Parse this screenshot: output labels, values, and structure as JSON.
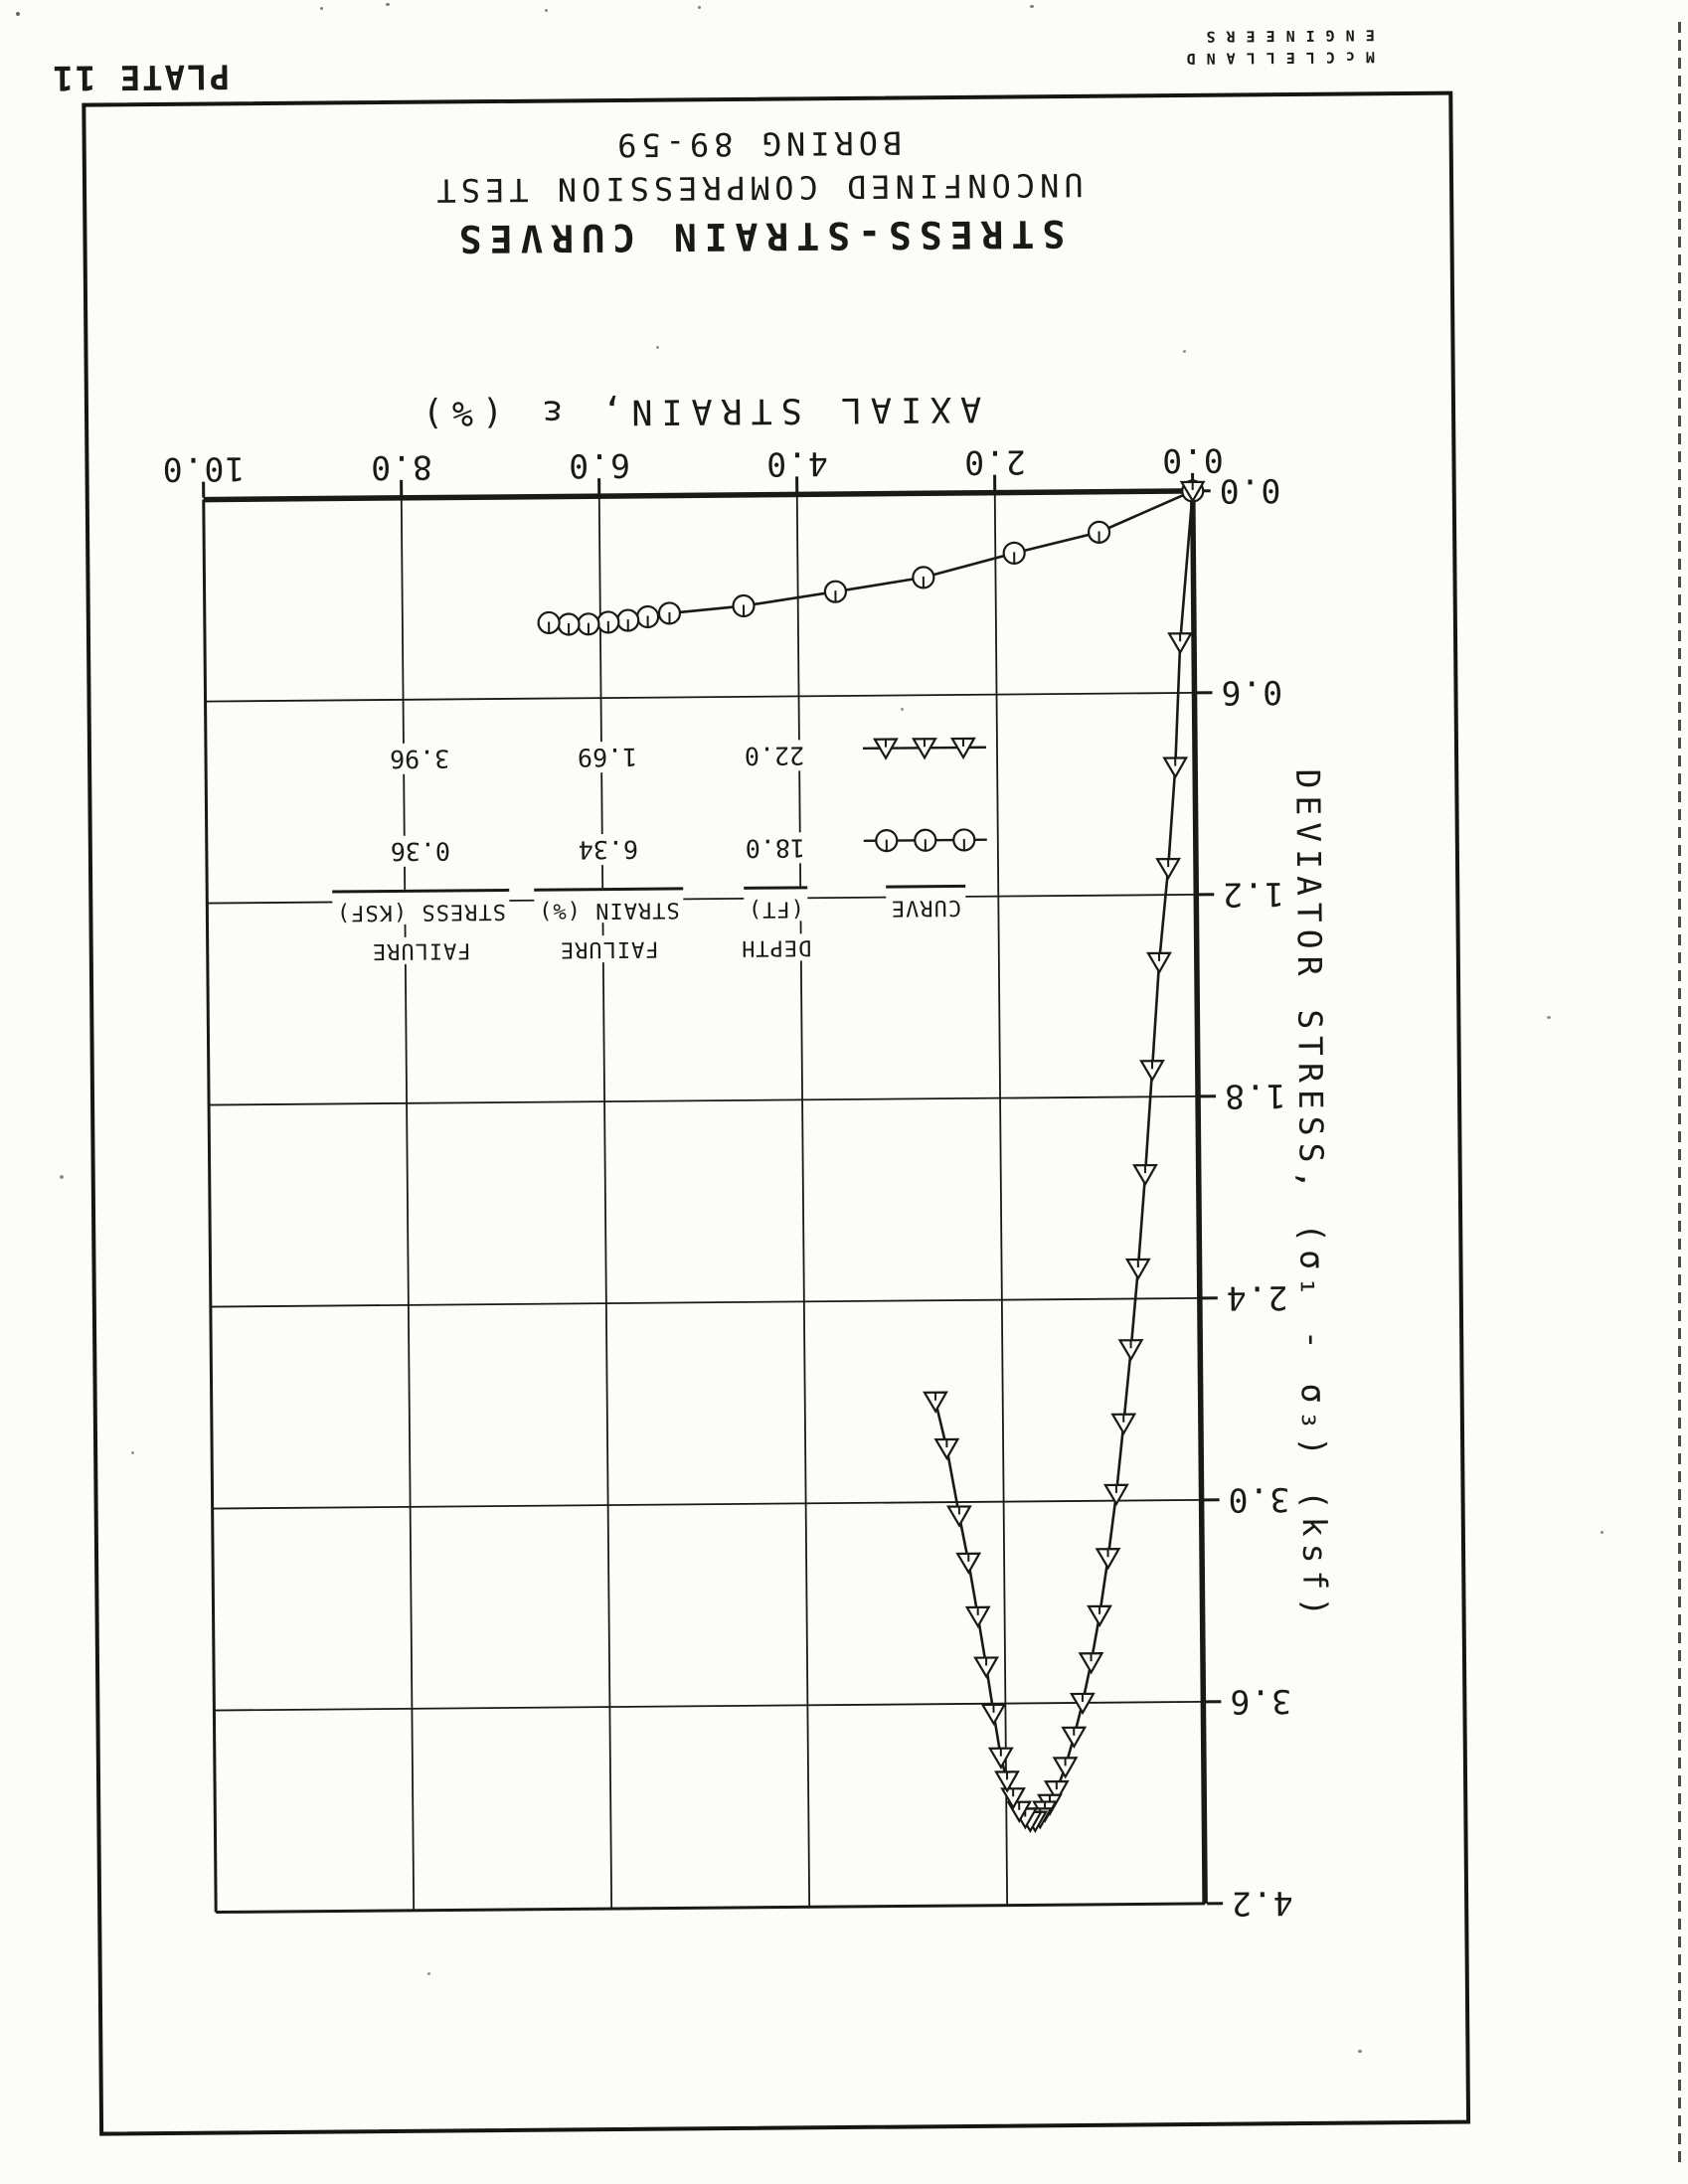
{
  "page": {
    "plate_label": "PLATE 11",
    "company_line1": "McCLELLAND",
    "company_line2": "ENGINEERS"
  },
  "title": {
    "line1": "STRESS-STRAIN CURVES",
    "line2": "UNCONFINED COMPRESSION TEST",
    "line3": "BORING 89-59"
  },
  "chart_data": {
    "type": "line",
    "title": "STRESS-STRAIN CURVES",
    "subtitle": "UNCONFINED COMPRESSION TEST BORING 89-59",
    "xlabel": "AXIAL STRAIN, ε (%)",
    "ylabel": "DEVIATOR STRESS, (σ₁ - σ₃)  (ksf)",
    "xlim": [
      0,
      10
    ],
    "ylim": [
      0,
      4.2
    ],
    "xticks": [
      0,
      2,
      4,
      6,
      8,
      10
    ],
    "yticks": [
      0,
      0.6,
      1.2,
      1.8,
      2.4,
      3,
      3.6,
      4.2
    ],
    "grid": true,
    "orientation_note": "page scanned upside-down (rotated 180 degrees)",
    "legend_position": "inside plot, lower right",
    "series": [
      {
        "name": "DEPTH 18.0 FT",
        "marker": "circle-tick",
        "failure_strain_pct": 6.34,
        "failure_stress_ksf": 0.36,
        "points": [
          [
            0,
            0
          ],
          [
            0.95,
            0.12
          ],
          [
            1.81,
            0.18
          ],
          [
            2.73,
            0.25
          ],
          [
            3.62,
            0.29
          ],
          [
            4.55,
            0.33
          ],
          [
            5.3,
            0.35
          ],
          [
            5.52,
            0.36
          ],
          [
            5.72,
            0.37
          ],
          [
            5.92,
            0.375
          ],
          [
            6.12,
            0.38
          ],
          [
            6.32,
            0.38
          ],
          [
            6.52,
            0.375
          ]
        ]
      },
      {
        "name": "DEPTH 22.0 FT",
        "marker": "triangle",
        "failure_strain_pct": 1.69,
        "failure_stress_ksf": 3.96,
        "points": [
          [
            0,
            0
          ],
          [
            0.14,
            0.45
          ],
          [
            0.2,
            0.82
          ],
          [
            0.28,
            1.12
          ],
          [
            0.38,
            1.4
          ],
          [
            0.46,
            1.72
          ],
          [
            0.54,
            2.03
          ],
          [
            0.62,
            2.31
          ],
          [
            0.7,
            2.55
          ],
          [
            0.78,
            2.77
          ],
          [
            0.86,
            2.98
          ],
          [
            0.95,
            3.17
          ],
          [
            1.04,
            3.34
          ],
          [
            1.13,
            3.48
          ],
          [
            1.22,
            3.6
          ],
          [
            1.31,
            3.7
          ],
          [
            1.4,
            3.79
          ],
          [
            1.49,
            3.86
          ],
          [
            1.56,
            3.9
          ],
          [
            1.61,
            3.92
          ],
          [
            1.66,
            3.94
          ],
          [
            1.71,
            3.95
          ],
          [
            1.76,
            3.95
          ],
          [
            1.81,
            3.94
          ],
          [
            1.87,
            3.92
          ],
          [
            1.93,
            3.88
          ],
          [
            1.99,
            3.83
          ],
          [
            2.05,
            3.76
          ],
          [
            2.12,
            3.63
          ],
          [
            2.19,
            3.49
          ],
          [
            2.27,
            3.34
          ],
          [
            2.36,
            3.18
          ],
          [
            2.45,
            3.04
          ],
          [
            2.57,
            2.84
          ],
          [
            2.68,
            2.7
          ]
        ]
      }
    ]
  },
  "legend": {
    "headers": [
      {
        "line1": "",
        "line2": "CURVE"
      },
      {
        "line1": "DEPTH",
        "line2": "(FT)"
      },
      {
        "line1": "FAILURE",
        "line2": "STRAIN (%)"
      },
      {
        "line1": "FAILURE",
        "line2": "STRESS (KSF)"
      }
    ],
    "rows": [
      {
        "marker": "circle-tick",
        "depth": "18.0",
        "strain": "6.34",
        "stress": "0.36"
      },
      {
        "marker": "triangle",
        "depth": "22.0",
        "strain": "1.69",
        "stress": "3.96"
      }
    ]
  }
}
